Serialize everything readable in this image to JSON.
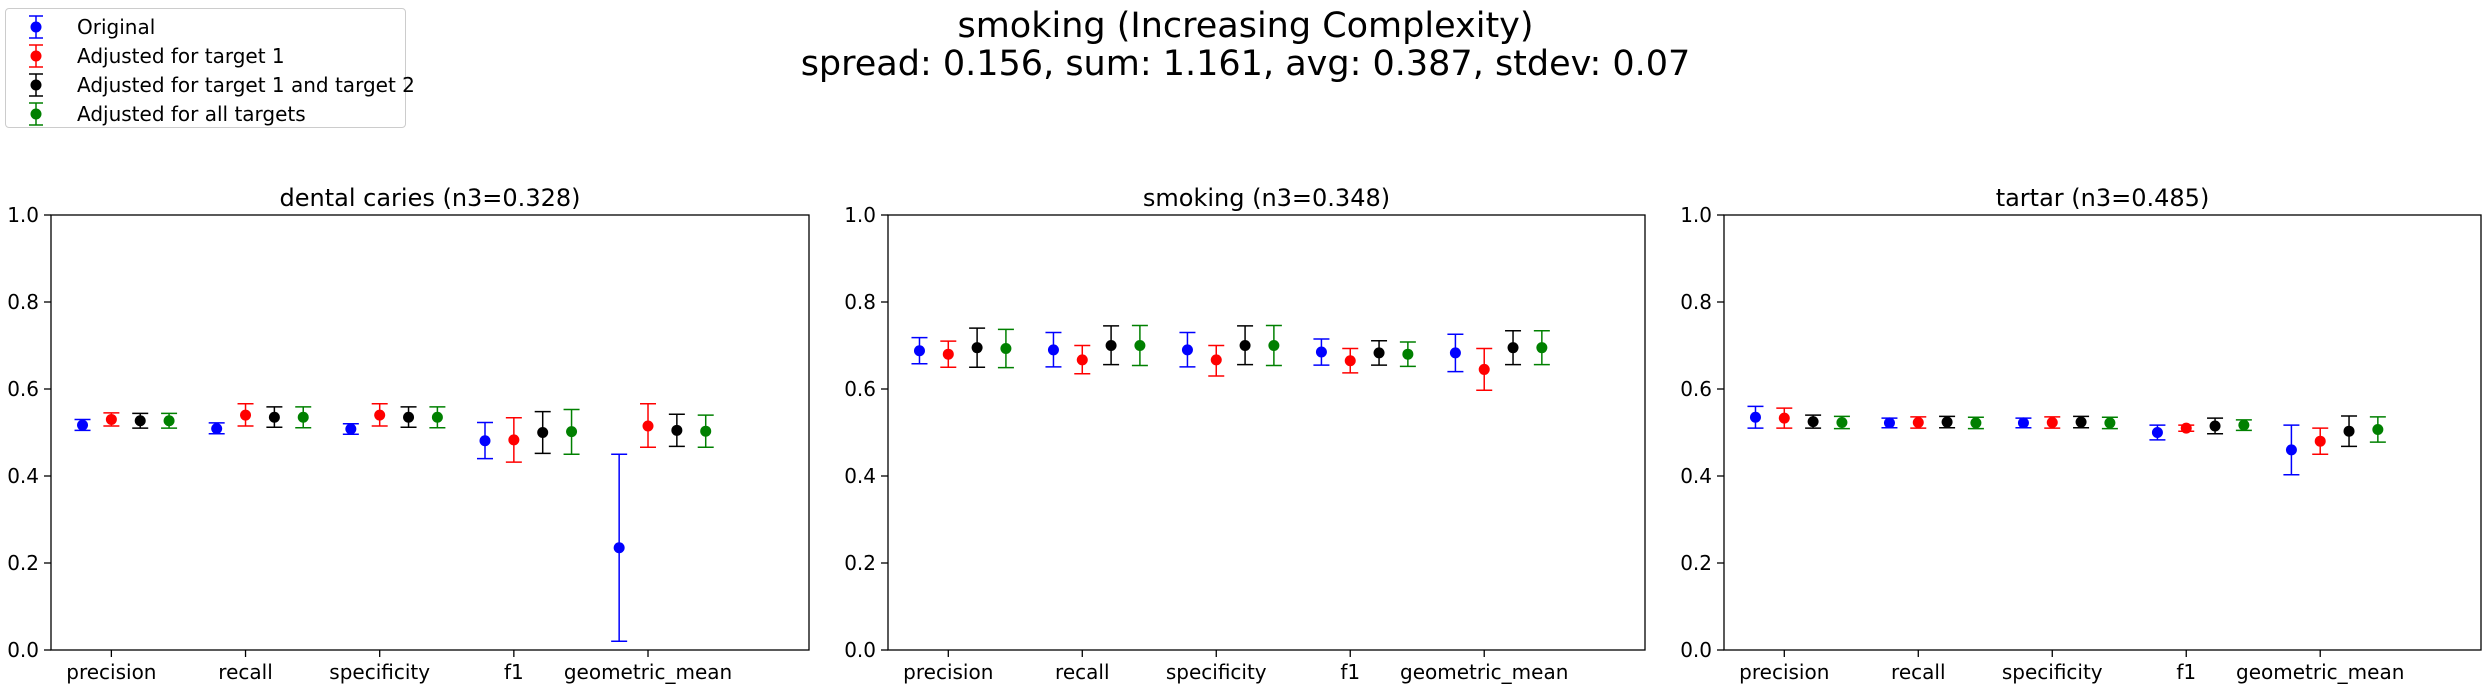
{
  "suptitle_line1": "smoking (Increasing Complexity)",
  "suptitle_line2": "spread: 0.156, sum: 1.161, avg: 0.387, stdev: 0.07",
  "legend": [
    {
      "label": "Original",
      "color": "#0000ff"
    },
    {
      "label": "Adjusted for target 1",
      "color": "#ff0000"
    },
    {
      "label": "Adjusted for target 1 and target 2",
      "color": "#000000"
    },
    {
      "label": "Adjusted for all targets",
      "color": "#008000"
    }
  ],
  "chart_data": [
    {
      "type": "scatter",
      "title": "dental caries (n3=0.328)",
      "categories": [
        "precision",
        "recall",
        "specificity",
        "f1",
        "geometric_mean"
      ],
      "ylim": [
        0,
        1
      ],
      "yticks": [
        "0.0",
        "0.2",
        "0.4",
        "0.6",
        "0.8",
        "1.0"
      ],
      "series": [
        {
          "name": "Original",
          "values": [
            0.517,
            0.509,
            0.508,
            0.481,
            0.235
          ],
          "lower": [
            0.505,
            0.497,
            0.496,
            0.44,
            0.02
          ],
          "upper": [
            0.53,
            0.522,
            0.52,
            0.523,
            0.45
          ]
        },
        {
          "name": "Adjusted for target 1",
          "values": [
            0.53,
            0.54,
            0.54,
            0.483,
            0.515
          ],
          "lower": [
            0.515,
            0.515,
            0.515,
            0.432,
            0.466
          ],
          "upper": [
            0.545,
            0.566,
            0.566,
            0.534,
            0.566
          ]
        },
        {
          "name": "Adjusted for target 1 and target 2",
          "values": [
            0.527,
            0.535,
            0.535,
            0.5,
            0.505
          ],
          "lower": [
            0.51,
            0.512,
            0.512,
            0.452,
            0.468
          ],
          "upper": [
            0.544,
            0.559,
            0.559,
            0.548,
            0.542
          ]
        },
        {
          "name": "Adjusted for all targets",
          "values": [
            0.527,
            0.535,
            0.535,
            0.502,
            0.503
          ],
          "lower": [
            0.51,
            0.511,
            0.511,
            0.45,
            0.466
          ],
          "upper": [
            0.544,
            0.559,
            0.559,
            0.553,
            0.54
          ]
        }
      ]
    },
    {
      "type": "scatter",
      "title": "smoking (n3=0.348)",
      "categories": [
        "precision",
        "recall",
        "specificity",
        "f1",
        "geometric_mean"
      ],
      "ylim": [
        0,
        1
      ],
      "yticks": [
        "0.0",
        "0.2",
        "0.4",
        "0.6",
        "0.8",
        "1.0"
      ],
      "series": [
        {
          "name": "Original",
          "values": [
            0.688,
            0.69,
            0.69,
            0.685,
            0.683
          ],
          "lower": [
            0.658,
            0.651,
            0.651,
            0.655,
            0.64
          ],
          "upper": [
            0.718,
            0.73,
            0.73,
            0.715,
            0.726
          ]
        },
        {
          "name": "Adjusted for target 1",
          "values": [
            0.68,
            0.667,
            0.667,
            0.665,
            0.645
          ],
          "lower": [
            0.65,
            0.635,
            0.63,
            0.637,
            0.597
          ],
          "upper": [
            0.71,
            0.7,
            0.7,
            0.693,
            0.693
          ]
        },
        {
          "name": "Adjusted for target 1 and target 2",
          "values": [
            0.695,
            0.7,
            0.7,
            0.683,
            0.695
          ],
          "lower": [
            0.65,
            0.656,
            0.656,
            0.655,
            0.656
          ],
          "upper": [
            0.74,
            0.745,
            0.745,
            0.711,
            0.734
          ]
        },
        {
          "name": "Adjusted for all targets",
          "values": [
            0.693,
            0.7,
            0.7,
            0.68,
            0.695
          ],
          "lower": [
            0.649,
            0.654,
            0.654,
            0.652,
            0.656
          ],
          "upper": [
            0.737,
            0.746,
            0.746,
            0.708,
            0.734
          ]
        }
      ]
    },
    {
      "type": "scatter",
      "title": "tartar (n3=0.485)",
      "categories": [
        "precision",
        "recall",
        "specificity",
        "f1",
        "geometric_mean"
      ],
      "ylim": [
        0,
        1
      ],
      "yticks": [
        "0.0",
        "0.2",
        "0.4",
        "0.6",
        "0.8",
        "1.0"
      ],
      "series": [
        {
          "name": "Original",
          "values": [
            0.535,
            0.522,
            0.522,
            0.5,
            0.46
          ],
          "lower": [
            0.51,
            0.511,
            0.511,
            0.483,
            0.403
          ],
          "upper": [
            0.56,
            0.533,
            0.533,
            0.517,
            0.517
          ]
        },
        {
          "name": "Adjusted for target 1",
          "values": [
            0.533,
            0.523,
            0.523,
            0.51,
            0.48
          ],
          "lower": [
            0.51,
            0.51,
            0.51,
            0.503,
            0.45
          ],
          "upper": [
            0.556,
            0.536,
            0.536,
            0.517,
            0.51
          ]
        },
        {
          "name": "Adjusted for target 1 and target 2",
          "values": [
            0.525,
            0.524,
            0.524,
            0.515,
            0.503
          ],
          "lower": [
            0.51,
            0.511,
            0.511,
            0.497,
            0.468
          ],
          "upper": [
            0.54,
            0.537,
            0.537,
            0.533,
            0.538
          ]
        },
        {
          "name": "Adjusted for all targets",
          "values": [
            0.523,
            0.522,
            0.522,
            0.517,
            0.507
          ],
          "lower": [
            0.509,
            0.509,
            0.509,
            0.505,
            0.478
          ],
          "upper": [
            0.537,
            0.535,
            0.535,
            0.529,
            0.536
          ]
        }
      ]
    }
  ]
}
